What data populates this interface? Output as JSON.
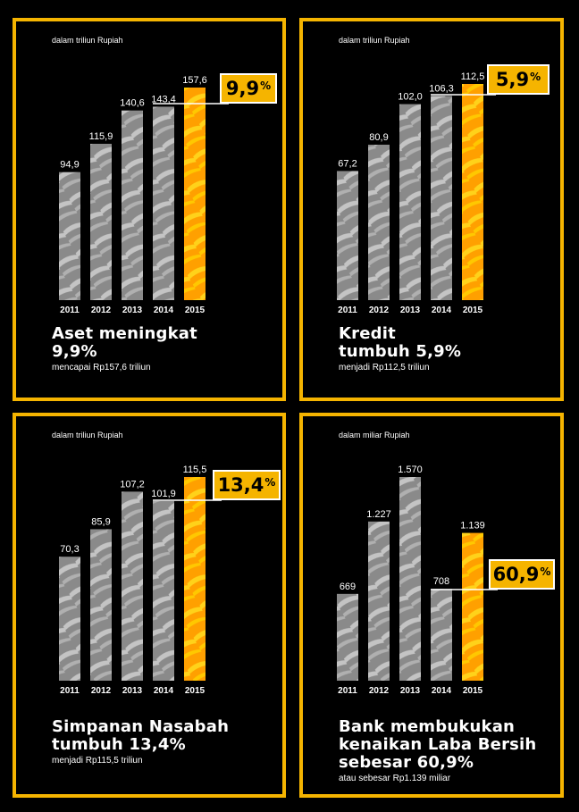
{
  "colors": {
    "accent": "#f5b400",
    "bar_gray": "#8a8a8a",
    "bar_highlight": "#ffa000"
  },
  "panels": [
    {
      "unit": "dalam triliun Rupiah",
      "badge": "9,9",
      "badge_suffix": "%",
      "title_lines": [
        "Aset meningkat",
        "9,9%"
      ],
      "subtitle": "mencapai Rp157,6 triliun"
    },
    {
      "unit": "dalam triliun Rupiah",
      "badge": "5,9",
      "badge_suffix": "%",
      "title_lines": [
        "Kredit",
        "tumbuh 5,9%"
      ],
      "subtitle": "menjadi Rp112,5 triliun"
    },
    {
      "unit": "dalam triliun Rupiah",
      "badge": "13,4",
      "badge_suffix": "%",
      "title_lines": [
        "Simpanan Nasabah",
        "tumbuh 13,4%"
      ],
      "subtitle": "menjadi Rp115,5 triliun"
    },
    {
      "unit": "dalam miliar Rupiah",
      "badge": "60,9",
      "badge_suffix": "%",
      "title_lines": [
        "Bank membukukan",
        "kenaikan Laba Bersih",
        "sebesar 60,9%"
      ],
      "subtitle": "atau sebesar Rp1.139 miliar"
    }
  ],
  "chart_data": [
    {
      "type": "bar",
      "categories": [
        "2011",
        "2012",
        "2013",
        "2014",
        "2015"
      ],
      "values": [
        94.9,
        115.9,
        140.6,
        143.4,
        157.6
      ],
      "value_labels": [
        "94,9",
        "115,9",
        "140,6",
        "143,4",
        "157,6"
      ],
      "ylabel": "dalam triliun Rupiah",
      "highlight": "2015"
    },
    {
      "type": "bar",
      "categories": [
        "2011",
        "2012",
        "2013",
        "2014",
        "2015"
      ],
      "values": [
        67.2,
        80.9,
        102.0,
        106.3,
        112.5
      ],
      "value_labels": [
        "67,2",
        "80,9",
        "102,0",
        "106,3",
        "112,5"
      ],
      "ylabel": "dalam triliun Rupiah",
      "highlight": "2015"
    },
    {
      "type": "bar",
      "categories": [
        "2011",
        "2012",
        "2013",
        "2014",
        "2015"
      ],
      "values": [
        70.3,
        85.9,
        107.2,
        101.9,
        115.5
      ],
      "value_labels": [
        "70,3",
        "85,9",
        "107,2",
        "101,9",
        "115,5"
      ],
      "ylabel": "dalam triliun Rupiah",
      "highlight": "2015"
    },
    {
      "type": "bar",
      "categories": [
        "2011",
        "2012",
        "2013",
        "2014",
        "2015"
      ],
      "values": [
        669,
        1227,
        1570,
        708,
        1139
      ],
      "value_labels": [
        "669",
        "1.227",
        "1.570",
        "708",
        "1.139"
      ],
      "ylabel": "dalam miliar Rupiah",
      "highlight": "2015"
    }
  ]
}
